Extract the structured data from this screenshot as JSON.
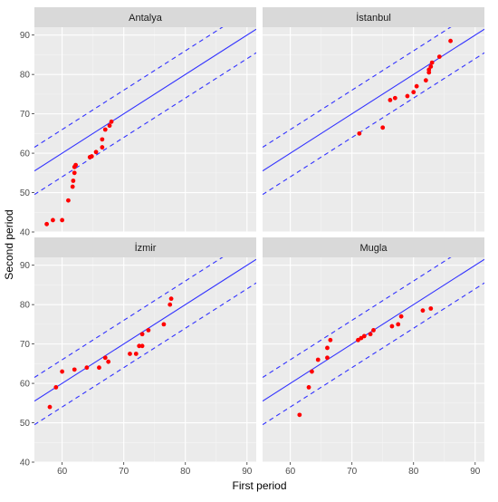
{
  "chart_data": {
    "type": "scatter",
    "xlabel": "First period",
    "ylabel": "Second period",
    "xlim": [
      55.5,
      91.5
    ],
    "ylim": [
      40,
      92
    ],
    "x_ticks": [
      60,
      70,
      80,
      90
    ],
    "y_ticks": [
      40,
      50,
      60,
      70,
      80,
      90
    ],
    "grid": true,
    "point_color": "#ff0000",
    "line_color": "#3333ff",
    "panel_bg": "#ebebeb",
    "strip_bg": "#d9d9d9",
    "reference_lines": [
      {
        "style": "solid",
        "slope": 1,
        "intercept": 0
      },
      {
        "style": "dashed",
        "slope": 1,
        "intercept": 6
      },
      {
        "style": "dashed",
        "slope": 1,
        "intercept": -6
      }
    ],
    "panels": [
      {
        "title": "Antalya",
        "points": [
          [
            57.5,
            42
          ],
          [
            58.5,
            43
          ],
          [
            60,
            43
          ],
          [
            61,
            48
          ],
          [
            61.7,
            51.5
          ],
          [
            61.8,
            53
          ],
          [
            62,
            55
          ],
          [
            62,
            56.5
          ],
          [
            62.2,
            57
          ],
          [
            64.5,
            59
          ],
          [
            64.8,
            59.2
          ],
          [
            65.5,
            60.3
          ],
          [
            66.5,
            61.5
          ],
          [
            66.5,
            63.5
          ],
          [
            67,
            66
          ],
          [
            67.7,
            67
          ],
          [
            68,
            68
          ]
        ]
      },
      {
        "title": "İstanbul",
        "points": [
          [
            71.2,
            65
          ],
          [
            75,
            66.5
          ],
          [
            76.2,
            73.5
          ],
          [
            77,
            74
          ],
          [
            79,
            74.5
          ],
          [
            80,
            75.5
          ],
          [
            80.5,
            77
          ],
          [
            82,
            78.5
          ],
          [
            82.5,
            80.5
          ],
          [
            82.5,
            81.2
          ],
          [
            82.8,
            82
          ],
          [
            83,
            83
          ],
          [
            84.2,
            84.5
          ],
          [
            86,
            88.5
          ]
        ]
      },
      {
        "title": "İzmir",
        "points": [
          [
            58,
            54
          ],
          [
            59,
            59
          ],
          [
            60,
            63
          ],
          [
            62,
            63.5
          ],
          [
            64,
            64
          ],
          [
            66,
            64
          ],
          [
            67,
            66.5
          ],
          [
            67.5,
            65.5
          ],
          [
            71,
            67.5
          ],
          [
            72,
            67.5
          ],
          [
            72.5,
            69.5
          ],
          [
            73,
            69.5
          ],
          [
            73,
            72.5
          ],
          [
            74,
            73.5
          ],
          [
            76.5,
            75
          ],
          [
            77.5,
            80
          ],
          [
            77.7,
            81.5
          ]
        ]
      },
      {
        "title": "Mugla",
        "points": [
          [
            61.5,
            52
          ],
          [
            63,
            59
          ],
          [
            63.5,
            63
          ],
          [
            64.5,
            66
          ],
          [
            66,
            66.5
          ],
          [
            66,
            69
          ],
          [
            66.5,
            71
          ],
          [
            71,
            71
          ],
          [
            71.5,
            71.5
          ],
          [
            72,
            72
          ],
          [
            73,
            72.5
          ],
          [
            73.5,
            73.5
          ],
          [
            76.5,
            74.5
          ],
          [
            77.5,
            75
          ],
          [
            78,
            77
          ],
          [
            81.5,
            78.5
          ],
          [
            82.8,
            79
          ]
        ]
      }
    ]
  }
}
